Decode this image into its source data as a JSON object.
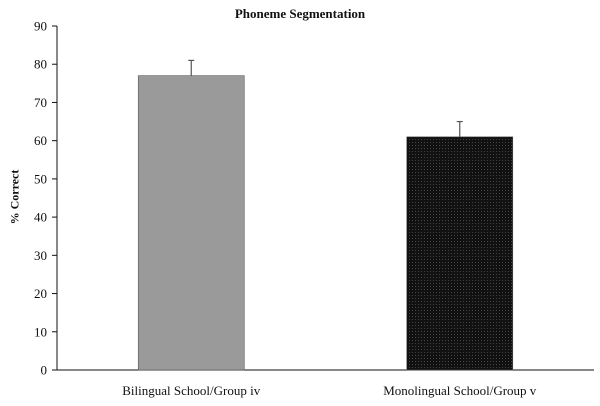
{
  "chart_data": {
    "type": "bar",
    "title": "Phoneme Segmentation",
    "xlabel": "",
    "ylabel": "% Correct",
    "categories": [
      "Bilingual School/Group iv",
      "Monolingual School/Group v"
    ],
    "values": [
      77,
      61
    ],
    "error_upper": [
      4,
      4
    ],
    "colors": [
      "#9a9a9a",
      "#111111"
    ],
    "bar_patterns": [
      "solid",
      "dotted"
    ],
    "ylim": [
      0,
      90
    ],
    "yticks": [
      0,
      10,
      20,
      30,
      40,
      50,
      60,
      70,
      80,
      90
    ],
    "grid": false,
    "legend": "none"
  }
}
